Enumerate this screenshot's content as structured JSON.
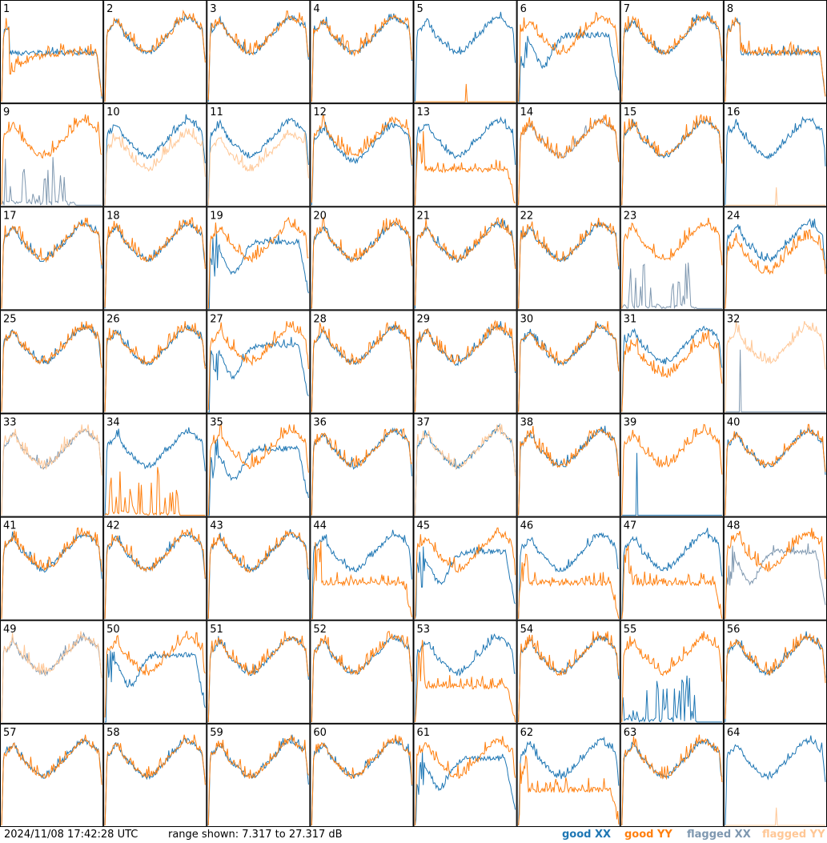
{
  "footer": {
    "timestamp": "2024/11/08 17:42:28 UTC",
    "range_text": "range shown: 7.317 to 27.317 dB"
  },
  "legend": [
    {
      "label": "good XX",
      "color": "#1f77b4"
    },
    {
      "label": "good YY",
      "color": "#ff7f0e"
    },
    {
      "label": "flagged XX",
      "color": "#7f98b0"
    },
    {
      "label": "flagged YY",
      "color": "#ffc796"
    }
  ],
  "chart_data": {
    "type": "line",
    "ylim": [
      7.317,
      27.317
    ],
    "units": "dB",
    "grid": "8x8 small multiples",
    "panels": [
      {
        "id": "1",
        "xx": "good",
        "yy": "good",
        "shape": "edge_dip",
        "peak": "yy"
      },
      {
        "id": "2",
        "xx": "good",
        "yy": "good",
        "shape": "normal"
      },
      {
        "id": "3",
        "xx": "good",
        "yy": "good",
        "shape": "normal"
      },
      {
        "id": "4",
        "xx": "good",
        "yy": "good",
        "shape": "normal"
      },
      {
        "id": "5",
        "xx": "good",
        "yy": "good",
        "shape": "xx_only"
      },
      {
        "id": "6",
        "xx": "good",
        "yy": "good",
        "shape": "xx_dip"
      },
      {
        "id": "7",
        "xx": "good",
        "yy": "good",
        "shape": "normal"
      },
      {
        "id": "8",
        "xx": "good",
        "yy": "good",
        "shape": "flat"
      },
      {
        "id": "9",
        "xx": "flagged",
        "yy": "good",
        "shape": "xx_spikes"
      },
      {
        "id": "10",
        "xx": "good",
        "yy": "flagged",
        "shape": "yy_low"
      },
      {
        "id": "11",
        "xx": "good",
        "yy": "flagged",
        "shape": "yy_low"
      },
      {
        "id": "12",
        "xx": "good",
        "yy": "good",
        "shape": "yy_high"
      },
      {
        "id": "13",
        "xx": "good",
        "yy": "good",
        "shape": "yy_drop"
      },
      {
        "id": "14",
        "xx": "flagged",
        "yy": "good",
        "shape": "normal"
      },
      {
        "id": "15",
        "xx": "good",
        "yy": "good",
        "shape": "normal"
      },
      {
        "id": "16",
        "xx": "good",
        "yy": "flagged",
        "shape": "xx_only"
      },
      {
        "id": "17",
        "xx": "good",
        "yy": "good",
        "shape": "normal"
      },
      {
        "id": "18",
        "xx": "good",
        "yy": "good",
        "shape": "normal"
      },
      {
        "id": "19",
        "xx": "good",
        "yy": "good",
        "shape": "xx_dip"
      },
      {
        "id": "20",
        "xx": "good",
        "yy": "good",
        "shape": "normal"
      },
      {
        "id": "21",
        "xx": "good",
        "yy": "good",
        "shape": "normal"
      },
      {
        "id": "22",
        "xx": "good",
        "yy": "good",
        "shape": "normal"
      },
      {
        "id": "23",
        "xx": "flagged",
        "yy": "good",
        "shape": "xx_spikes"
      },
      {
        "id": "24",
        "xx": "good",
        "yy": "good",
        "shape": "yy_low"
      },
      {
        "id": "25",
        "xx": "good",
        "yy": "good",
        "shape": "normal"
      },
      {
        "id": "26",
        "xx": "good",
        "yy": "good",
        "shape": "normal"
      },
      {
        "id": "27",
        "xx": "good",
        "yy": "good",
        "shape": "xx_dip"
      },
      {
        "id": "28",
        "xx": "good",
        "yy": "good",
        "shape": "normal"
      },
      {
        "id": "29",
        "xx": "good",
        "yy": "good",
        "shape": "normal"
      },
      {
        "id": "30",
        "xx": "good",
        "yy": "good",
        "shape": "normal"
      },
      {
        "id": "31",
        "xx": "good",
        "yy": "good",
        "shape": "yy_low"
      },
      {
        "id": "32",
        "xx": "flagged",
        "yy": "flagged",
        "shape": "yy_only"
      },
      {
        "id": "33",
        "xx": "flagged",
        "yy": "flagged",
        "shape": "normal"
      },
      {
        "id": "34",
        "xx": "good",
        "yy": "good",
        "shape": "yy_spikes"
      },
      {
        "id": "35",
        "xx": "good",
        "yy": "good",
        "shape": "xx_dip"
      },
      {
        "id": "36",
        "xx": "good",
        "yy": "good",
        "shape": "normal"
      },
      {
        "id": "37",
        "xx": "good",
        "yy": "flagged",
        "shape": "normal"
      },
      {
        "id": "38",
        "xx": "good",
        "yy": "good",
        "shape": "normal"
      },
      {
        "id": "39",
        "xx": "good",
        "yy": "good",
        "shape": "yy_only"
      },
      {
        "id": "40",
        "xx": "good",
        "yy": "good",
        "shape": "normal"
      },
      {
        "id": "41",
        "xx": "good",
        "yy": "good",
        "shape": "normal"
      },
      {
        "id": "42",
        "xx": "good",
        "yy": "good",
        "shape": "normal"
      },
      {
        "id": "43",
        "xx": "good",
        "yy": "good",
        "shape": "normal"
      },
      {
        "id": "44",
        "xx": "good",
        "yy": "good",
        "shape": "yy_drop"
      },
      {
        "id": "45",
        "xx": "good",
        "yy": "good",
        "shape": "xx_dip"
      },
      {
        "id": "46",
        "xx": "good",
        "yy": "good",
        "shape": "yy_drop"
      },
      {
        "id": "47",
        "xx": "good",
        "yy": "good",
        "shape": "yy_drop"
      },
      {
        "id": "48",
        "xx": "flagged",
        "yy": "good",
        "shape": "xx_dip"
      },
      {
        "id": "49",
        "xx": "flagged",
        "yy": "flagged",
        "shape": "normal"
      },
      {
        "id": "50",
        "xx": "good",
        "yy": "good",
        "shape": "xx_dip"
      },
      {
        "id": "51",
        "xx": "good",
        "yy": "good",
        "shape": "normal"
      },
      {
        "id": "52",
        "xx": "good",
        "yy": "good",
        "shape": "normal"
      },
      {
        "id": "53",
        "xx": "good",
        "yy": "good",
        "shape": "yy_drop"
      },
      {
        "id": "54",
        "xx": "good",
        "yy": "good",
        "shape": "normal"
      },
      {
        "id": "55",
        "xx": "good",
        "yy": "good",
        "shape": "xx_spikes"
      },
      {
        "id": "56",
        "xx": "good",
        "yy": "good",
        "shape": "normal"
      },
      {
        "id": "57",
        "xx": "good",
        "yy": "good",
        "shape": "normal"
      },
      {
        "id": "58",
        "xx": "good",
        "yy": "good",
        "shape": "normal"
      },
      {
        "id": "59",
        "xx": "good",
        "yy": "good",
        "shape": "normal"
      },
      {
        "id": "60",
        "xx": "good",
        "yy": "good",
        "shape": "normal"
      },
      {
        "id": "61",
        "xx": "good",
        "yy": "good",
        "shape": "xx_dip"
      },
      {
        "id": "62",
        "xx": "good",
        "yy": "good",
        "shape": "yy_drop"
      },
      {
        "id": "63",
        "xx": "good",
        "yy": "good",
        "shape": "normal"
      },
      {
        "id": "64",
        "xx": "good",
        "yy": "flagged",
        "shape": "xx_only"
      }
    ]
  }
}
